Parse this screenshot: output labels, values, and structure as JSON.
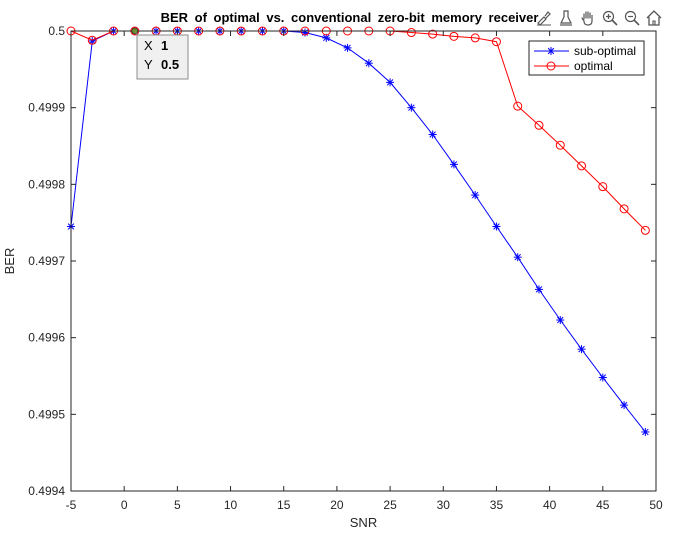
{
  "chart_data": {
    "type": "line",
    "title": "BER of optimal vs. conventional zero-bit memory receiver",
    "xlabel": "SNR",
    "ylabel": "BER",
    "xlim": [
      -5,
      50
    ],
    "ylim": [
      0.4994,
      0.5
    ],
    "xticks": [
      -5,
      0,
      5,
      10,
      15,
      20,
      25,
      30,
      35,
      40,
      45,
      50
    ],
    "yticks": [
      0.4994,
      0.4995,
      0.4996,
      0.4997,
      0.4998,
      0.4999,
      0.5
    ],
    "ytick_labels": [
      "0.4994",
      "0.4995",
      "0.4996",
      "0.4997",
      "0.4998",
      "0.4999",
      "0.5"
    ],
    "grid": false,
    "legend_location": "top-right",
    "x": [
      -5,
      -3,
      -1,
      1,
      3,
      5,
      7,
      9,
      11,
      13,
      15,
      17,
      19,
      21,
      23,
      25,
      27,
      29,
      31,
      33,
      35,
      37,
      39,
      41,
      43,
      45,
      47,
      49
    ],
    "series": [
      {
        "name": "sub-optimal",
        "color": "#0000ff",
        "marker": "asterisk",
        "values": [
          0.499745,
          0.499987,
          0.5,
          0.5,
          0.5,
          0.5,
          0.5,
          0.5,
          0.5,
          0.5,
          0.5,
          0.499998,
          0.499991,
          0.499978,
          0.499958,
          0.499933,
          0.4999,
          0.499865,
          0.499826,
          0.499786,
          0.499745,
          0.499705,
          0.499663,
          0.499623,
          0.499585,
          0.499548,
          0.499512,
          0.499477
        ]
      },
      {
        "name": "optimal",
        "color": "#ff0000",
        "marker": "circle",
        "values": [
          0.5,
          0.499988,
          0.5,
          0.5,
          0.5,
          0.5,
          0.5,
          0.5,
          0.5,
          0.5,
          0.5,
          0.5,
          0.5,
          0.5,
          0.5,
          0.5,
          0.499998,
          0.499996,
          0.499993,
          0.499991,
          0.499986,
          0.499902,
          0.499877,
          0.499851,
          0.499824,
          0.499797,
          0.499768,
          0.49974
        ]
      }
    ],
    "datatip": {
      "x_label": "X",
      "x_value": "1",
      "y_label": "Y",
      "y_value": "0.5",
      "x": 1,
      "y": 0.5
    }
  },
  "toolbar": {
    "icons": [
      "brush-icon",
      "eraser-icon",
      "pan-hand-icon",
      "zoom-in-icon",
      "zoom-out-icon",
      "home-icon"
    ]
  }
}
